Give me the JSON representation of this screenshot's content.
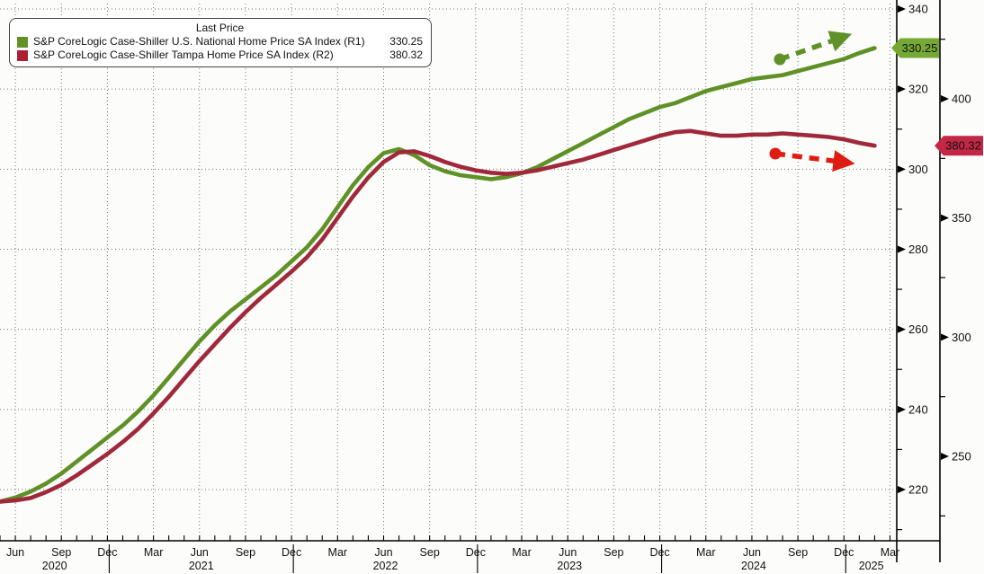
{
  "legend": {
    "title": "Last Price",
    "series": [
      {
        "name": "S&P CoreLogic Case-Shiller U.S. National Home Price SA Index  (R1)",
        "value": "330.25",
        "color": "#5f9126"
      },
      {
        "name": "S&P CoreLogic Case-Shiller Tampa Home Price SA Index  (R2)",
        "value": "380.32",
        "color": "#ab2133"
      }
    ]
  },
  "chart_data": {
    "type": "line",
    "title": "",
    "x_range": [
      "2020-05",
      "2025-02"
    ],
    "grid": "dotted",
    "legend_position": "top-left",
    "months": [
      "2020-05",
      "2020-06",
      "2020-07",
      "2020-08",
      "2020-09",
      "2020-10",
      "2020-11",
      "2020-12",
      "2021-01",
      "2021-02",
      "2021-03",
      "2021-04",
      "2021-05",
      "2021-06",
      "2021-07",
      "2021-08",
      "2021-09",
      "2021-10",
      "2021-11",
      "2021-12",
      "2022-01",
      "2022-02",
      "2022-03",
      "2022-04",
      "2022-05",
      "2022-06",
      "2022-07",
      "2022-08",
      "2022-09",
      "2022-10",
      "2022-11",
      "2022-12",
      "2023-01",
      "2023-02",
      "2023-03",
      "2023-04",
      "2023-05",
      "2023-06",
      "2023-07",
      "2023-08",
      "2023-09",
      "2023-10",
      "2023-11",
      "2023-12",
      "2024-01",
      "2024-02",
      "2024-03",
      "2024-04",
      "2024-05",
      "2024-06",
      "2024-07",
      "2024-08",
      "2024-09",
      "2024-10",
      "2024-11",
      "2024-12",
      "2025-01",
      "2025-02"
    ],
    "series": [
      {
        "name": "S&P CoreLogic Case-Shiller U.S. National Home Price SA Index",
        "axis": "R1",
        "color": "#5f9126",
        "last_price": 330.25,
        "values": [
          217,
          218,
          219.5,
          221.5,
          224,
          227,
          230,
          233,
          236,
          239.5,
          243.5,
          248,
          252.5,
          257,
          261,
          264.5,
          267.5,
          270.5,
          273.5,
          277,
          280.5,
          285,
          290.5,
          296,
          300.5,
          304,
          305,
          303.5,
          301,
          299.5,
          298.5,
          298,
          297.5,
          298,
          299,
          300.5,
          302.5,
          304.5,
          306.5,
          308.5,
          310.5,
          312.5,
          314,
          315.5,
          316.5,
          318,
          319.5,
          320.5,
          321.5,
          322.5,
          323,
          323.5,
          324.5,
          325.5,
          326.5,
          327.5,
          329,
          330.25
        ]
      },
      {
        "name": "S&P CoreLogic Case-Shiller Tampa Home Price SA Index",
        "axis": "R2",
        "color": "#a0283b",
        "last_price": 380.32,
        "values": [
          231,
          231.5,
          232.5,
          235,
          238,
          242,
          246.5,
          251,
          256,
          261.5,
          268,
          275,
          282.5,
          290,
          297,
          304,
          310.5,
          316.5,
          322,
          327.5,
          333.5,
          341,
          350,
          359,
          367,
          373.5,
          377.5,
          378,
          376,
          373.5,
          371.5,
          370,
          369,
          368.5,
          369,
          370,
          371.5,
          373,
          374.5,
          376.5,
          378.5,
          380.5,
          382.5,
          384.5,
          386,
          386.5,
          385.5,
          384.5,
          384.5,
          385,
          385,
          385.5,
          385,
          384.5,
          384,
          383,
          381.5,
          380.32
        ]
      }
    ],
    "y_axis_r1": {
      "majors": [
        340,
        320,
        300,
        280,
        260,
        240,
        220
      ],
      "minors": [
        330,
        310,
        290,
        270,
        250,
        230,
        210
      ]
    },
    "y_axis_r2": {
      "majors": [
        400,
        350,
        300,
        250
      ],
      "minors": [
        425,
        375,
        325,
        275,
        225
      ]
    },
    "x_axis": {
      "quarter_labels": [
        "Jun",
        "Sep",
        "Dec",
        "Mar",
        "Jun",
        "Sep",
        "Dec",
        "Mar",
        "Jun",
        "Sep",
        "Dec",
        "Mar",
        "Jun",
        "Sep",
        "Dec",
        "Mar",
        "Jun",
        "Sep",
        "Dec",
        "Mar"
      ],
      "year_labels": [
        "2020",
        "2021",
        "2022",
        "2023",
        "2024",
        "2025"
      ]
    },
    "badges": [
      {
        "label": "330.25",
        "axis": "R1",
        "value": 330.25,
        "color": "#76a933",
        "text_color": "#ffffff"
      },
      {
        "label": "380.32",
        "axis": "R2",
        "value": 380.32,
        "color": "#c22745",
        "text_color": "#ffffff"
      }
    ],
    "annotations": [
      {
        "name": "national-trend-arrow",
        "direction": "up",
        "style": "dashed-arrow",
        "color": "#5f9126"
      },
      {
        "name": "tampa-trend-arrow",
        "direction": "down",
        "style": "dashed-arrow",
        "color": "#dd1d11"
      }
    ]
  },
  "colors": {
    "background": "#fcfcfb",
    "grid": "#777777",
    "axis": "#000000",
    "national_line": "#5f9126",
    "tampa_line": "#a0283b",
    "national_badge": "#76a933",
    "tampa_badge": "#c22745"
  }
}
